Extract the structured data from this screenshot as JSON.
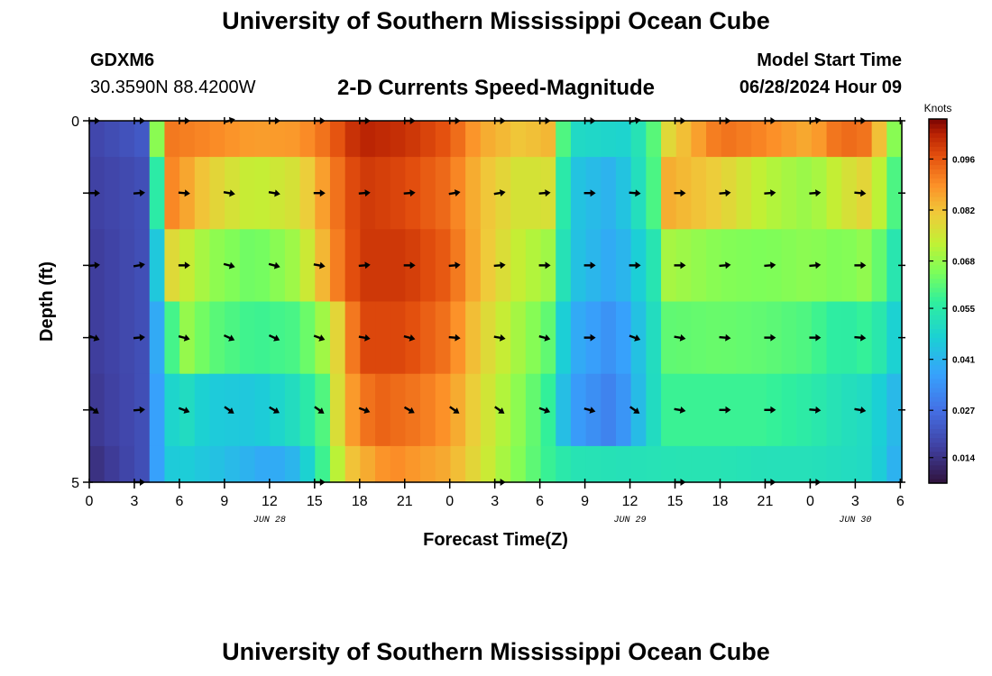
{
  "title": "University of Southern Mississippi Ocean Cube",
  "title_repeat": "University of Southern Mississippi Ocean Cube",
  "station": {
    "id": "GDXM6",
    "coords": "30.3590N  88.4200W"
  },
  "model_start": {
    "label": "Model Start Time",
    "value": "06/28/2024 Hour 09"
  },
  "chart_data": {
    "type": "heatmap",
    "title": "2-D Currents Speed-Magnitude",
    "xlabel": "Forecast Time(Z)",
    "ylabel": "Depth (ft)",
    "units": "Knots",
    "ylim": [
      0,
      5
    ],
    "y_ticks": [
      "0",
      "5"
    ],
    "x_tick_labels": [
      "0",
      "3",
      "6",
      "9",
      "12",
      "15",
      "18",
      "21",
      "0",
      "3",
      "6",
      "9",
      "12",
      "15",
      "18",
      "21",
      "0",
      "3",
      "6"
    ],
    "x_hours": [
      0,
      3,
      6,
      9,
      12,
      15,
      18,
      21,
      24,
      27,
      30,
      33,
      36,
      39,
      42,
      45,
      48,
      51,
      54
    ],
    "date_labels": [
      {
        "text": "JUN 28",
        "hour": 12
      },
      {
        "text": "JUN 29",
        "hour": 36
      },
      {
        "text": "JUN 30",
        "hour": 51
      }
    ],
    "colorbar": {
      "min": 0.007,
      "max": 0.107,
      "ticks": [
        "0.096",
        "0.082",
        "0.068",
        "0.055",
        "0.041",
        "0.027",
        "0.014"
      ],
      "tick_values": [
        0.096,
        0.082,
        0.068,
        0.055,
        0.041,
        0.027,
        0.014
      ]
    },
    "depth_layers": [
      0,
      1,
      2,
      3,
      4,
      5
    ],
    "speed_profiles": [
      {
        "layer": 0,
        "keys": [
          [
            0,
            0.018
          ],
          [
            3.5,
            0.022
          ],
          [
            4.3,
            0.06
          ],
          [
            5.3,
            0.092
          ],
          [
            8,
            0.09
          ],
          [
            11,
            0.087
          ],
          [
            14,
            0.088
          ],
          [
            16,
            0.094
          ],
          [
            18,
            0.103
          ],
          [
            21,
            0.101
          ],
          [
            24,
            0.096
          ],
          [
            26,
            0.086
          ],
          [
            29,
            0.081
          ],
          [
            30.5,
            0.085
          ],
          [
            32,
            0.05
          ],
          [
            36,
            0.048
          ],
          [
            37.5,
            0.06
          ],
          [
            38.5,
            0.078
          ],
          [
            42,
            0.093
          ],
          [
            45,
            0.09
          ],
          [
            48,
            0.085
          ],
          [
            50,
            0.094
          ],
          [
            52,
            0.092
          ],
          [
            54,
            0.06
          ]
        ]
      },
      {
        "layer": 1,
        "keys": [
          [
            0,
            0.017
          ],
          [
            3.5,
            0.02
          ],
          [
            4.5,
            0.055
          ],
          [
            5.5,
            0.09
          ],
          [
            8,
            0.08
          ],
          [
            11,
            0.073
          ],
          [
            14,
            0.077
          ],
          [
            16,
            0.09
          ],
          [
            18,
            0.1
          ],
          [
            21,
            0.098
          ],
          [
            24,
            0.093
          ],
          [
            26,
            0.083
          ],
          [
            29,
            0.075
          ],
          [
            30.5,
            0.078
          ],
          [
            32,
            0.045
          ],
          [
            35,
            0.04
          ],
          [
            37.5,
            0.058
          ],
          [
            38.5,
            0.085
          ],
          [
            42,
            0.08
          ],
          [
            45,
            0.072
          ],
          [
            48,
            0.068
          ],
          [
            50,
            0.075
          ],
          [
            52,
            0.08
          ],
          [
            54,
            0.055
          ]
        ]
      },
      {
        "layer": 2,
        "keys": [
          [
            0,
            0.016
          ],
          [
            3.5,
            0.02
          ],
          [
            4.7,
            0.05
          ],
          [
            5.5,
            0.078
          ],
          [
            8,
            0.068
          ],
          [
            11,
            0.063
          ],
          [
            14,
            0.07
          ],
          [
            16,
            0.088
          ],
          [
            18,
            0.1
          ],
          [
            21,
            0.1
          ],
          [
            24,
            0.095
          ],
          [
            26,
            0.083
          ],
          [
            29,
            0.072
          ],
          [
            30.5,
            0.07
          ],
          [
            32,
            0.045
          ],
          [
            35,
            0.038
          ],
          [
            37.5,
            0.052
          ],
          [
            38.5,
            0.07
          ],
          [
            42,
            0.066
          ],
          [
            45,
            0.065
          ],
          [
            48,
            0.067
          ],
          [
            50,
            0.065
          ],
          [
            52,
            0.068
          ],
          [
            54,
            0.05
          ]
        ]
      },
      {
        "layer": 3,
        "keys": [
          [
            0,
            0.016
          ],
          [
            3.5,
            0.02
          ],
          [
            5,
            0.048
          ],
          [
            6,
            0.07
          ],
          [
            8,
            0.062
          ],
          [
            11,
            0.058
          ],
          [
            14,
            0.06
          ],
          [
            16,
            0.072
          ],
          [
            18,
            0.098
          ],
          [
            21,
            0.098
          ],
          [
            24,
            0.092
          ],
          [
            26,
            0.08
          ],
          [
            29,
            0.068
          ],
          [
            30.5,
            0.063
          ],
          [
            32,
            0.04
          ],
          [
            35,
            0.033
          ],
          [
            37.5,
            0.05
          ],
          [
            38.5,
            0.062
          ],
          [
            42,
            0.063
          ],
          [
            45,
            0.062
          ],
          [
            48,
            0.06
          ],
          [
            50,
            0.055
          ],
          [
            52,
            0.058
          ],
          [
            54,
            0.045
          ]
        ]
      },
      {
        "layer": 4,
        "keys": [
          [
            0,
            0.015
          ],
          [
            3.5,
            0.02
          ],
          [
            5,
            0.045
          ],
          [
            6,
            0.052
          ],
          [
            8,
            0.046
          ],
          [
            11,
            0.045
          ],
          [
            14,
            0.052
          ],
          [
            15.5,
            0.06
          ],
          [
            17,
            0.085
          ],
          [
            19,
            0.095
          ],
          [
            22,
            0.092
          ],
          [
            24,
            0.088
          ],
          [
            26,
            0.078
          ],
          [
            29,
            0.065
          ],
          [
            30.5,
            0.058
          ],
          [
            32,
            0.037
          ],
          [
            35,
            0.03
          ],
          [
            37.5,
            0.05
          ],
          [
            38.5,
            0.058
          ],
          [
            42,
            0.058
          ],
          [
            45,
            0.058
          ],
          [
            48,
            0.055
          ],
          [
            50,
            0.052
          ],
          [
            52,
            0.05
          ],
          [
            54,
            0.04
          ]
        ]
      },
      {
        "layer": 5,
        "keys": [
          [
            0,
            0.013
          ],
          [
            3.5,
            0.02
          ],
          [
            5,
            0.045
          ],
          [
            6,
            0.047
          ],
          [
            9,
            0.043
          ],
          [
            12,
            0.038
          ],
          [
            14,
            0.042
          ],
          [
            15.5,
            0.058
          ],
          [
            16.5,
            0.072
          ],
          [
            17.5,
            0.082
          ],
          [
            20,
            0.09
          ],
          [
            24,
            0.085
          ],
          [
            26,
            0.077
          ],
          [
            28,
            0.068
          ],
          [
            30.5,
            0.058
          ],
          [
            32,
            0.053
          ],
          [
            36,
            0.052
          ],
          [
            39,
            0.053
          ],
          [
            42,
            0.053
          ],
          [
            45,
            0.052
          ],
          [
            48,
            0.052
          ],
          [
            50,
            0.051
          ],
          [
            52,
            0.05
          ],
          [
            54,
            0.038
          ]
        ]
      }
    ],
    "arrow_rows": [
      {
        "depth": 0,
        "hours": [
          0,
          3,
          6,
          9,
          12,
          15,
          18,
          21,
          24,
          27,
          30,
          33,
          36,
          39,
          42,
          45,
          48,
          51
        ],
        "angles": [
          0,
          0,
          0,
          -15,
          0,
          0,
          0,
          0,
          0,
          0,
          0,
          0,
          -10,
          0,
          0,
          0,
          -10,
          0
        ]
      },
      {
        "depth": 1,
        "hours": [
          0,
          3,
          6,
          9,
          12,
          15,
          18,
          21,
          24,
          27,
          30,
          33,
          36,
          39,
          42,
          45,
          48,
          51
        ],
        "angles": [
          0,
          -5,
          5,
          10,
          10,
          0,
          -5,
          -5,
          -10,
          -10,
          -5,
          0,
          5,
          0,
          -5,
          -5,
          -5,
          5
        ]
      },
      {
        "depth": 2,
        "hours": [
          0,
          3,
          6,
          9,
          12,
          15,
          18,
          21,
          24,
          27,
          30,
          33,
          36,
          39,
          42,
          45,
          48,
          51
        ],
        "angles": [
          -5,
          -10,
          0,
          15,
          15,
          10,
          -5,
          0,
          -5,
          -5,
          0,
          0,
          0,
          0,
          -5,
          -5,
          -5,
          0
        ]
      },
      {
        "depth": 3,
        "hours": [
          0,
          3,
          6,
          9,
          12,
          15,
          18,
          21,
          24,
          27,
          30,
          33,
          36,
          39,
          42,
          45,
          48,
          51
        ],
        "angles": [
          20,
          -5,
          15,
          25,
          25,
          20,
          10,
          15,
          5,
          10,
          15,
          0,
          20,
          10,
          5,
          0,
          0,
          5
        ]
      },
      {
        "depth": 4,
        "hours": [
          0,
          3,
          6,
          9,
          12,
          15,
          18,
          21,
          24,
          27,
          30,
          33,
          36,
          39,
          42,
          45,
          48,
          51
        ],
        "angles": [
          35,
          -5,
          20,
          35,
          30,
          35,
          20,
          30,
          35,
          35,
          20,
          15,
          35,
          10,
          0,
          0,
          5,
          10
        ]
      },
      {
        "depth": 5,
        "hours": [
          3,
          15,
          27,
          39,
          45,
          48
        ],
        "angles": [
          0,
          0,
          0,
          0,
          0,
          0
        ]
      }
    ]
  }
}
